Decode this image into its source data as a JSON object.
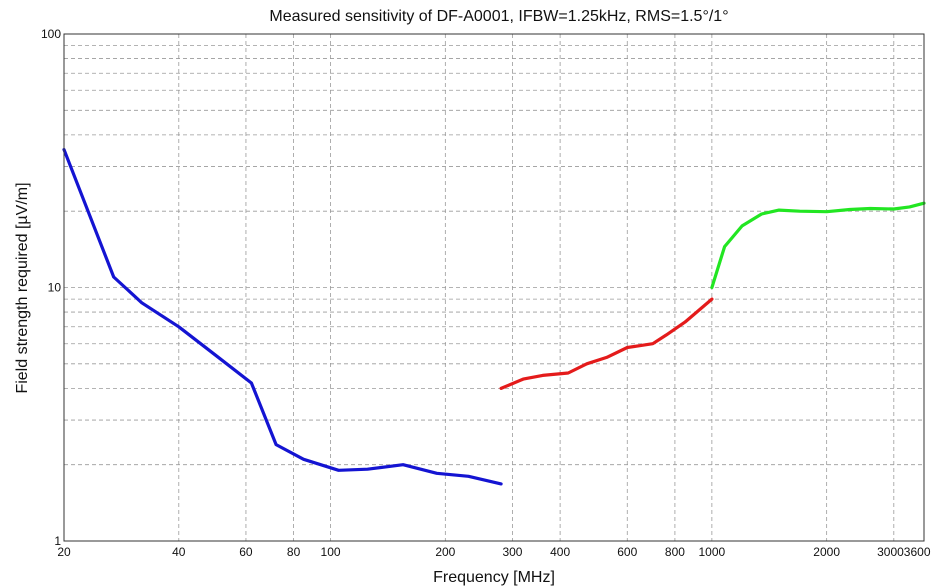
{
  "chart_data": {
    "type": "line",
    "title": "Measured sensitivity of DF-A0001, IFBW=1.25kHz, RMS=1.5°/1°",
    "xlabel": "Frequency [MHz]",
    "ylabel": "Field strength required [µV/m]",
    "x_scale": "log",
    "y_scale": "log",
    "xlim": [
      20,
      3600
    ],
    "ylim": [
      1,
      100
    ],
    "x_ticks": [
      20,
      40,
      60,
      80,
      100,
      200,
      300,
      400,
      600,
      800,
      1000,
      2000,
      3000,
      3600
    ],
    "x_tick_labels": [
      "20",
      "40",
      "60",
      "80",
      "100",
      "200",
      "300",
      "400",
      "600",
      "800",
      "1000",
      "2000",
      "3000",
      "3600"
    ],
    "y_ticks": [
      1,
      10,
      100
    ],
    "y_tick_labels": [
      "1",
      "10",
      "100"
    ],
    "grid": true,
    "series": [
      {
        "color": "#1414d2",
        "x": [
          20,
          27,
          32,
          40,
          50,
          62,
          72,
          85,
          105,
          125,
          155,
          190,
          230,
          280
        ],
        "y": [
          35,
          11,
          8.7,
          7.0,
          5.4,
          4.2,
          2.4,
          2.1,
          1.9,
          1.92,
          2.0,
          1.85,
          1.8,
          1.68
        ]
      },
      {
        "color": "#e41b1b",
        "x": [
          280,
          320,
          360,
          420,
          470,
          530,
          600,
          650,
          700,
          760,
          850,
          1000
        ],
        "y": [
          4.0,
          4.35,
          4.5,
          4.6,
          5.0,
          5.3,
          5.8,
          5.9,
          6.0,
          6.5,
          7.3,
          9.0
        ]
      },
      {
        "color": "#22e622",
        "x": [
          1000,
          1080,
          1200,
          1350,
          1500,
          1700,
          2000,
          2300,
          2600,
          3000,
          3300,
          3600
        ],
        "y": [
          10,
          14.5,
          17.5,
          19.5,
          20.2,
          20.0,
          19.9,
          20.3,
          20.5,
          20.4,
          20.8,
          21.5
        ]
      }
    ]
  }
}
